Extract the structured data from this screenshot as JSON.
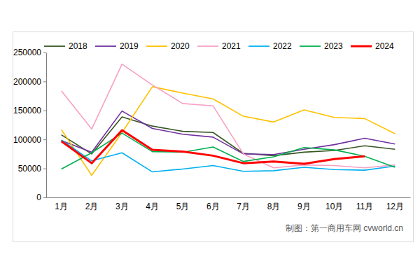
{
  "chart_data": {
    "type": "line",
    "categories": [
      "1月",
      "2月",
      "3月",
      "4月",
      "5月",
      "6月",
      "7月",
      "8月",
      "9月",
      "10月",
      "11月",
      "12月"
    ],
    "series": [
      {
        "name": "2018",
        "color": "#375623",
        "values": [
          108000,
          75000,
          139000,
          123000,
          114000,
          112000,
          76000,
          72000,
          78000,
          81000,
          89000,
          83000
        ]
      },
      {
        "name": "2019",
        "color": "#7030a0",
        "values": [
          98000,
          78000,
          149000,
          119000,
          109000,
          104000,
          75000,
          74000,
          83000,
          91000,
          102000,
          92000
        ]
      },
      {
        "name": "2020",
        "color": "#ffc000",
        "values": [
          117000,
          38000,
          112000,
          191000,
          180000,
          170000,
          140000,
          130000,
          151000,
          138000,
          136000,
          110000
        ]
      },
      {
        "name": "2021",
        "color": "#f7a1c4",
        "values": [
          184000,
          118000,
          230000,
          194000,
          162000,
          158000,
          75000,
          51000,
          56000,
          55000,
          51000,
          56000
        ]
      },
      {
        "name": "2022",
        "color": "#00b0f0",
        "values": [
          99000,
          63000,
          77000,
          44000,
          49000,
          55000,
          45000,
          46000,
          52000,
          48000,
          47000,
          54000
        ]
      },
      {
        "name": "2023",
        "color": "#00b050",
        "values": [
          49000,
          77000,
          111000,
          79000,
          78000,
          87000,
          62000,
          70000,
          86000,
          82000,
          71000,
          52000
        ]
      },
      {
        "name": "2024",
        "color": "#ff0000",
        "values": [
          97000,
          59000,
          116000,
          82000,
          79000,
          72000,
          59000,
          62000,
          58000,
          66000,
          71000,
          null
        ]
      }
    ],
    "ylim": [
      0,
      250000
    ],
    "yticks": [
      0,
      50000,
      100000,
      150000,
      200000,
      250000
    ],
    "grid": false,
    "legend": "top",
    "annotations": [
      "制图：第一商用车网 cvworld.cn"
    ]
  }
}
